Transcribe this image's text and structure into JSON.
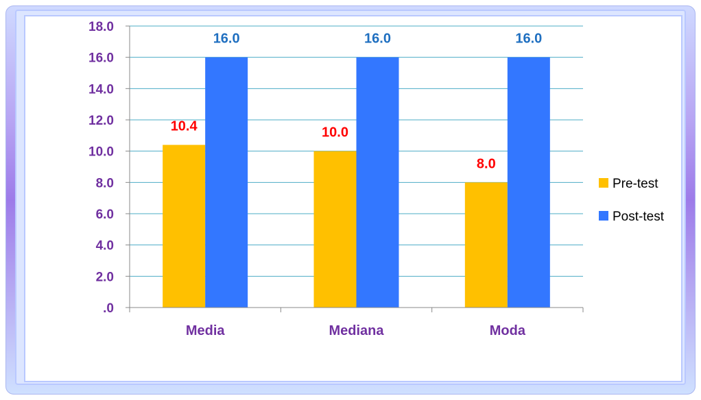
{
  "chart_data": {
    "type": "bar",
    "categories": [
      "Media",
      "Mediana",
      "Moda"
    ],
    "series": [
      {
        "name": "Pre-test",
        "values": [
          10.4,
          10.0,
          8.0
        ],
        "color": "#ffc000",
        "label_color": "#ff0000"
      },
      {
        "name": "Post-test",
        "values": [
          16.0,
          16.0,
          16.0
        ],
        "color": "#3377ff",
        "label_color": "#1f6fc0"
      }
    ],
    "title": "",
    "xlabel": "",
    "ylabel": "",
    "ylim": [
      0,
      18
    ],
    "yticks": [
      0,
      2,
      4,
      6,
      8,
      10,
      12,
      14,
      16,
      18
    ],
    "ytick_labels": [
      ".0",
      "2.0",
      "4.0",
      "6.0",
      "8.0",
      "10.0",
      "12.0",
      "14.0",
      "16.0",
      "18.0"
    ],
    "data_labels": [
      [
        "10.4",
        "10.0",
        "8.0"
      ],
      [
        "16.0",
        "16.0",
        "16.0"
      ]
    ],
    "grid": true,
    "grid_color": "#4bacc6",
    "axis_label_color": "#7030a0",
    "legend_position": "right"
  }
}
